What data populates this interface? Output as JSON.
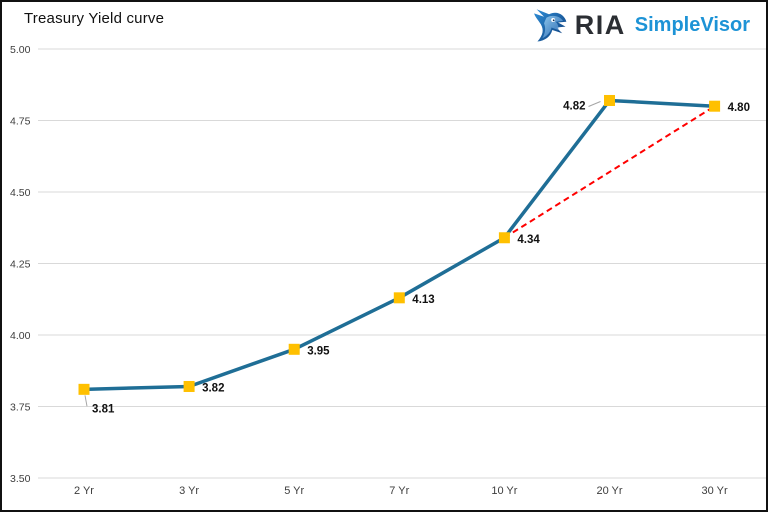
{
  "header": {
    "title": "Treasury Yield curve",
    "brand": {
      "name": "RIA",
      "product": "SimpleVisor"
    }
  },
  "chart_data": {
    "type": "line",
    "title": "Treasury Yield curve",
    "categories": [
      "2 Yr",
      "3 Yr",
      "5 Yr",
      "7 Yr",
      "10 Yr",
      "20 Yr",
      "30 Yr"
    ],
    "values": [
      3.81,
      3.82,
      3.95,
      4.13,
      4.34,
      4.82,
      4.8
    ],
    "point_labels": [
      "3.81",
      "3.82",
      "3.95",
      "4.13",
      "4.34",
      "4.82",
      "4.80"
    ],
    "ylim": [
      3.5,
      5.0
    ],
    "ytick_labels": [
      "5.00",
      "4.75",
      "4.50",
      "4.25",
      "4.00",
      "3.75",
      "3.50"
    ],
    "xlabel": "",
    "ylabel": "",
    "grid": true,
    "legend": "none",
    "series": [
      {
        "name": "yield-curve",
        "style": "solid",
        "color": "#1f6e96",
        "marker": "square",
        "marker_color": "#ffc000"
      },
      {
        "name": "10yr-to-30yr-trend",
        "style": "dashed",
        "color": "#ff0000",
        "from_category": "10 Yr",
        "to_category": "30 Yr"
      }
    ]
  },
  "colors": {
    "gridline": "#d9d9d9",
    "axis_text": "#3d3d3d",
    "data_label": "#111111",
    "leader_line": "#a6a6a6",
    "line": "#1f6e96",
    "marker": "#ffc000",
    "dashed": "#ff0000",
    "frame_border": "#111111",
    "brand_blue": "#1d93d6",
    "brand_dark": "#2b2e33"
  }
}
